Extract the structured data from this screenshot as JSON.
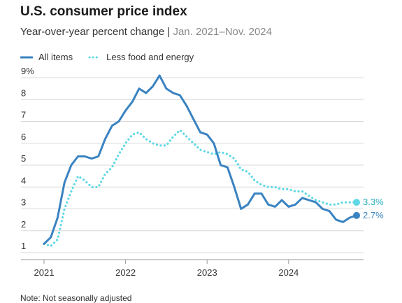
{
  "title": "U.S. consumer price index",
  "subtitle": {
    "main": "Year-over-year percent change | ",
    "range": "Jan. 2021–Nov. 2024"
  },
  "note": "Note: Not seasonally adjusted",
  "colors": {
    "all_items": "#3a83c1",
    "core": "#5fd8e6",
    "grid": "#d9d9d9"
  },
  "chart_data": {
    "type": "line",
    "x_start": "2021-01",
    "x_end": "2024-11",
    "x_ticks": [
      "2021",
      "2022",
      "2023",
      "2024"
    ],
    "y_ticks": [
      "9%",
      "8",
      "7",
      "6",
      "5",
      "4",
      "3",
      "2",
      "1"
    ],
    "ylim": [
      1,
      9
    ],
    "legend_position": "top-left",
    "series": [
      {
        "name": "All items",
        "end_label": "2.7%",
        "values": [
          1.4,
          1.7,
          2.6,
          4.2,
          5.0,
          5.4,
          5.4,
          5.3,
          5.4,
          6.2,
          6.8,
          7.0,
          7.5,
          7.9,
          8.5,
          8.3,
          8.6,
          9.1,
          8.5,
          8.3,
          8.2,
          7.7,
          7.1,
          6.5,
          6.4,
          6.0,
          5.0,
          4.9,
          4.0,
          3.0,
          3.2,
          3.7,
          3.7,
          3.2,
          3.1,
          3.4,
          3.1,
          3.2,
          3.5,
          3.4,
          3.3,
          3.0,
          2.9,
          2.5,
          2.4,
          2.6,
          2.7
        ]
      },
      {
        "name": "Less food and energy",
        "end_label": "3.3%",
        "values": [
          1.4,
          1.3,
          1.6,
          3.0,
          3.8,
          4.5,
          4.3,
          4.0,
          4.0,
          4.6,
          4.9,
          5.5,
          6.0,
          6.4,
          6.5,
          6.2,
          6.0,
          5.9,
          5.9,
          6.3,
          6.6,
          6.3,
          6.0,
          5.7,
          5.6,
          5.5,
          5.6,
          5.5,
          5.3,
          4.8,
          4.7,
          4.3,
          4.1,
          4.0,
          4.0,
          3.9,
          3.9,
          3.8,
          3.8,
          3.6,
          3.4,
          3.3,
          3.2,
          3.2,
          3.3,
          3.3,
          3.3
        ]
      }
    ]
  }
}
